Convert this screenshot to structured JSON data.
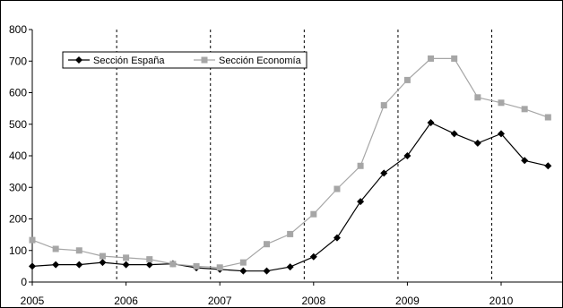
{
  "chart_data": {
    "type": "line",
    "title": "",
    "xlabel": "",
    "ylabel": "",
    "ylim": [
      0,
      800
    ],
    "yticks": [
      0,
      100,
      200,
      300,
      400,
      500,
      600,
      700,
      800
    ],
    "xlim": [
      2005,
      2010.65
    ],
    "xticks": [
      {
        "value": 2005,
        "label": "2005"
      },
      {
        "value": 2006,
        "label": "2006"
      },
      {
        "value": 2007,
        "label": "2007"
      },
      {
        "value": 2008,
        "label": "2008"
      },
      {
        "value": 2009,
        "label": "2009"
      },
      {
        "value": 2010,
        "label": "2010"
      }
    ],
    "year_dividers": [
      2005.9,
      2006.9,
      2007.9,
      2008.9,
      2009.9
    ],
    "grid": false,
    "legend_position": "top-left",
    "series": [
      {
        "name": "Sección España",
        "color": "#000000",
        "marker": "diamond",
        "points": [
          [
            2005.0,
            50
          ],
          [
            2005.25,
            55
          ],
          [
            2005.5,
            55
          ],
          [
            2005.75,
            62
          ],
          [
            2006.0,
            55
          ],
          [
            2006.25,
            55
          ],
          [
            2006.5,
            58
          ],
          [
            2006.75,
            45
          ],
          [
            2007.0,
            40
          ],
          [
            2007.25,
            35
          ],
          [
            2007.5,
            35
          ],
          [
            2007.75,
            48
          ],
          [
            2008.0,
            80
          ],
          [
            2008.25,
            140
          ],
          [
            2008.5,
            255
          ],
          [
            2008.75,
            345
          ],
          [
            2009.0,
            400
          ],
          [
            2009.25,
            505
          ],
          [
            2009.5,
            470
          ],
          [
            2009.75,
            440
          ],
          [
            2010.0,
            470
          ],
          [
            2010.25,
            385
          ],
          [
            2010.5,
            368
          ]
        ]
      },
      {
        "name": "Sección Economía",
        "color": "#a6a6a6",
        "marker": "square",
        "points": [
          [
            2005.0,
            133
          ],
          [
            2005.25,
            105
          ],
          [
            2005.5,
            100
          ],
          [
            2005.75,
            82
          ],
          [
            2006.0,
            77
          ],
          [
            2006.25,
            72
          ],
          [
            2006.5,
            57
          ],
          [
            2006.75,
            50
          ],
          [
            2007.0,
            46
          ],
          [
            2007.25,
            62
          ],
          [
            2007.5,
            120
          ],
          [
            2007.75,
            152
          ],
          [
            2008.0,
            215
          ],
          [
            2008.25,
            295
          ],
          [
            2008.5,
            368
          ],
          [
            2008.75,
            560
          ],
          [
            2009.0,
            640
          ],
          [
            2009.25,
            708
          ],
          [
            2009.5,
            708
          ],
          [
            2009.75,
            585
          ],
          [
            2010.0,
            568
          ],
          [
            2010.25,
            548
          ],
          [
            2010.5,
            522
          ]
        ]
      }
    ]
  }
}
